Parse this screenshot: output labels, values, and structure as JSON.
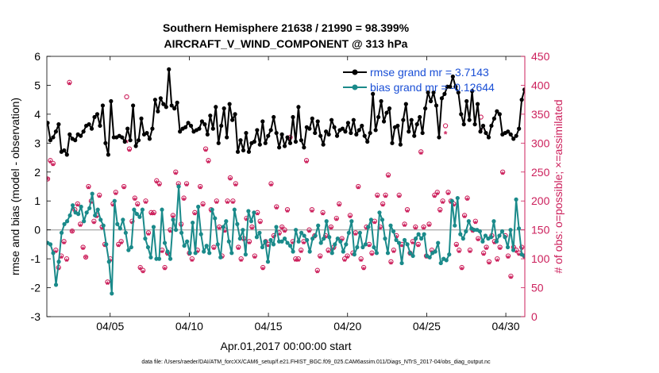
{
  "chart_data": {
    "type": "line",
    "title_line1": "Southern Hemisphere 21638 / 21990 = 98.399%",
    "title_line2": "AIRCRAFT_V_WIND_COMPONENT @ 313 hPa",
    "xlabel": "Apr.01,2017 00:00:00 start",
    "ylabel_left": "rmse and bias (model - observation)",
    "ylabel_right": "# of obs: o=possible; ×=assimilated",
    "footer": "data file: /Users/raeder/DAI/ATM_forcXX/CAM6_setup/f.e21.FHIST_BGC.f09_025.CAM6assim.011/Diags_NTrS_2017-04/obs_diag_output.nc",
    "xlim": [
      1.0,
      31.2
    ],
    "ylim_left": [
      -3,
      6
    ],
    "ylim_right": [
      0,
      450
    ],
    "x_ticks": [
      5,
      10,
      15,
      20,
      25,
      30
    ],
    "x_tick_labels": [
      "04/05",
      "04/10",
      "04/15",
      "04/20",
      "04/25",
      "04/30"
    ],
    "left_ticks": [
      -3,
      -2,
      -1,
      0,
      1,
      2,
      3,
      4,
      5,
      6
    ],
    "right_ticks": [
      0,
      50,
      100,
      150,
      200,
      250,
      300,
      350,
      400,
      450
    ],
    "colors": {
      "rmse": "#000000",
      "bias": "#1a8a8a",
      "obs": "#cc1f5b",
      "zero": "#b3b3b3",
      "legend_text": "#1a4fd6"
    },
    "legend": [
      {
        "name": "rmse",
        "label": "rmse grand mr = 3.7143"
      },
      {
        "name": "bias",
        "label": "bias grand mr = -0.12644"
      }
    ],
    "series": [
      {
        "name": "rmse",
        "axis": "left",
        "values": [
          3.7,
          3.1,
          3.2,
          3.4,
          3.65,
          2.7,
          2.75,
          2.6,
          3.3,
          3.15,
          3.1,
          3.3,
          3.25,
          3.4,
          3.6,
          3.65,
          3.5,
          3.9,
          4.0,
          3.6,
          4.3,
          3.0,
          2.6,
          4.45,
          3.2,
          3.2,
          3.25,
          3.2,
          3.05,
          3.5,
          3.1,
          4.3,
          2.9,
          3.1,
          3.85,
          3.3,
          3.35,
          3.15,
          3.5,
          4.5,
          4.1,
          4.55,
          4.35,
          4.25,
          5.55,
          4.3,
          4.2,
          4.4,
          3.4,
          3.5,
          3.55,
          3.7,
          3.6,
          3.4,
          3.45,
          3.5,
          3.75,
          3.65,
          3.3,
          3.95,
          3.5,
          4.25,
          3.0,
          3.6,
          4.2,
          3.2,
          4.35,
          3.8,
          4.0,
          2.7,
          3.1,
          2.75,
          3.35,
          2.7,
          3.0,
          3.05,
          3.45,
          2.95,
          3.75,
          3.0,
          3.25,
          3.45,
          3.9,
          3.35,
          2.85,
          3.3,
          2.9,
          3.2,
          3.0,
          3.9,
          3.05,
          4.25,
          3.1,
          2.85,
          3.55,
          3.5,
          3.85,
          3.35,
          3.75,
          3.25,
          2.95,
          3.4,
          3.3,
          3.8,
          3.55,
          3.25,
          3.45,
          3.5,
          3.4,
          3.7,
          3.35,
          3.8,
          3.3,
          3.45,
          3.6,
          3.25,
          3.05,
          3.35,
          4.7,
          3.45,
          3.9,
          4.45,
          3.75,
          4.05,
          4.2,
          3.0,
          3.55,
          3.6,
          2.95,
          3.8,
          4.35,
          3.4,
          3.8,
          3.25,
          3.65,
          3.9,
          3.35,
          4.2,
          4.75,
          4.45,
          4.75,
          4.3,
          3.2,
          4.55,
          4.7,
          4.95,
          4.95,
          5.3,
          4.95,
          4.75,
          4.0,
          3.65,
          4.45,
          3.8,
          4.8,
          3.65,
          4.35,
          3.4,
          3.6,
          3.35,
          3.2,
          3.6,
          3.85,
          4.1,
          4.0,
          3.3,
          3.35,
          3.4,
          3.3,
          3.15,
          3.25,
          3.5,
          4.5,
          4.85
        ]
      },
      {
        "name": "bias",
        "axis": "left",
        "values": [
          -0.45,
          -0.5,
          -0.8,
          -1.9,
          -1.1,
          -0.1,
          0.2,
          0.3,
          0.5,
          0.85,
          0.6,
          0.55,
          0.8,
          0.3,
          0.6,
          0.75,
          1.25,
          0.5,
          0.7,
          0.35,
          0.15,
          -0.5,
          -1.1,
          -2.2,
          1.0,
          0.2,
          0.05,
          0.35,
          -0.1,
          -0.7,
          -0.6,
          0.7,
          0.55,
          0.45,
          0.7,
          -0.3,
          -0.6,
          -0.95,
          0.1,
          -1.0,
          -1.0,
          0.7,
          -0.45,
          -0.75,
          -1.0,
          0.35,
          0.0,
          1.5,
          -0.1,
          -0.55,
          -0.4,
          -0.8,
          0.25,
          -0.8,
          0.8,
          -0.15,
          -0.75,
          -0.55,
          -0.8,
          0.7,
          0.4,
          -0.5,
          -0.95,
          0.1,
          0.3,
          -0.4,
          -0.8,
          0.7,
          0.2,
          -0.3,
          0.0,
          -0.85,
          0.65,
          0.3,
          0.6,
          -0.25,
          -0.1,
          -0.6,
          -0.4,
          -1.1,
          -0.35,
          -0.5,
          0.1,
          -0.4,
          -0.4,
          -0.3,
          -0.45,
          -0.55,
          -0.75,
          0.0,
          -0.4,
          -0.1,
          -0.2,
          -0.35,
          -0.75,
          -0.3,
          -0.2,
          0.15,
          -0.45,
          -0.3,
          0.3,
          -0.25,
          -0.8,
          -0.5,
          -0.3,
          -0.4,
          -0.75,
          -0.5,
          -0.1,
          0.3,
          -0.85,
          -0.6,
          -0.1,
          -0.6,
          -0.5,
          0.1,
          0.35,
          -0.6,
          -0.8,
          0.6,
          0.35,
          -0.3,
          -0.8,
          0.15,
          -0.05,
          -0.35,
          -0.45,
          -1.15,
          -0.35,
          -0.5,
          -0.8,
          -0.9,
          -0.3,
          -0.15,
          -0.3,
          -0.15,
          -0.9,
          -0.95,
          -0.8,
          -0.75,
          -0.45,
          -1.15,
          -1.0,
          -1.05,
          -0.85,
          1.0,
          0.15,
          1.1,
          -0.15,
          -0.3,
          -0.05,
          0.3,
          0.05,
          0.0,
          0.0,
          -0.05,
          -0.4,
          -0.2,
          -0.3,
          -0.25,
          0.3,
          -0.4,
          -0.2,
          -0.05,
          -0.25,
          -0.6,
          0.0,
          -0.7,
          1.05,
          0.05,
          -0.85,
          -0.9
        ]
      },
      {
        "name": "obs_possible",
        "axis": "right",
        "values": [
          238,
          270,
          265,
          115,
          85,
          105,
          130,
          100,
          405,
          148,
          185,
          195,
          160,
          120,
          103,
          225,
          200,
          165,
          175,
          210,
          155,
          125,
          60,
          100,
          195,
          215,
          125,
          130,
          225,
          380,
          290,
          165,
          205,
          195,
          85,
          80,
          200,
          145,
          180,
          180,
          235,
          230,
          115,
          85,
          110,
          150,
          175,
          250,
          230,
          160,
          205,
          230,
          110,
          100,
          180,
          115,
          225,
          195,
          290,
          270,
          185,
          120,
          200,
          155,
          105,
          150,
          200,
          240,
          200,
          230,
          120,
          100,
          135,
          170,
          130,
          155,
          105,
          180,
          165,
          85,
          130,
          125,
          230,
          140,
          190,
          145,
          155,
          150,
          185,
          310,
          130,
          100,
          100,
          115,
          130,
          270,
          150,
          185,
          140,
          80,
          105,
          180,
          140,
          115,
          155,
          120,
          170,
          195,
          135,
          100,
          105,
          175,
          110,
          145,
          225,
          100,
          85,
          155,
          125,
          110,
          165,
          210,
          155,
          195,
          210,
          245,
          95,
          115,
          140,
          210,
          125,
          160,
          185,
          110,
          130,
          155,
          125,
          285,
          155,
          105,
          160,
          115,
          210,
          215,
          185,
          200,
          330,
          215,
          200,
          195,
          125,
          115,
          85,
          175,
          205,
          115,
          150,
          165,
          135,
          345,
          110,
          120,
          95,
          140,
          130,
          100,
          120,
          250,
          140,
          105,
          70,
          120,
          115,
          110,
          120,
          105
        ]
      },
      {
        "name": "obs_assimilated",
        "axis": "right",
        "values": [
          235,
          265,
          260,
          110,
          80,
          100,
          125,
          95,
          400,
          145,
          180,
          190,
          155,
          115,
          100,
          220,
          195,
          160,
          170,
          205,
          150,
          120,
          55,
          95,
          190,
          210,
          120,
          125,
          220,
          300,
          285,
          160,
          200,
          190,
          80,
          75,
          195,
          140,
          175,
          175,
          230,
          225,
          110,
          80,
          105,
          145,
          170,
          245,
          225,
          155,
          200,
          225,
          105,
          95,
          175,
          110,
          220,
          190,
          285,
          265,
          180,
          115,
          195,
          150,
          100,
          145,
          195,
          235,
          195,
          225,
          115,
          95,
          130,
          165,
          125,
          150,
          100,
          175,
          160,
          80,
          125,
          120,
          225,
          135,
          185,
          140,
          150,
          145,
          180,
          305,
          125,
          95,
          95,
          110,
          125,
          265,
          145,
          180,
          135,
          75,
          100,
          175,
          135,
          110,
          150,
          115,
          165,
          190,
          130,
          95,
          100,
          170,
          105,
          140,
          220,
          95,
          80,
          150,
          120,
          105,
          160,
          205,
          150,
          190,
          205,
          240,
          90,
          110,
          135,
          205,
          120,
          155,
          180,
          105,
          125,
          150,
          120,
          280,
          150,
          100,
          155,
          110,
          205,
          210,
          180,
          195,
          315,
          210,
          195,
          190,
          120,
          110,
          80,
          170,
          200,
          110,
          145,
          160,
          130,
          320,
          105,
          115,
          90,
          135,
          125,
          95,
          115,
          245,
          135,
          100,
          65,
          115,
          110,
          105,
          115,
          100
        ]
      }
    ]
  }
}
